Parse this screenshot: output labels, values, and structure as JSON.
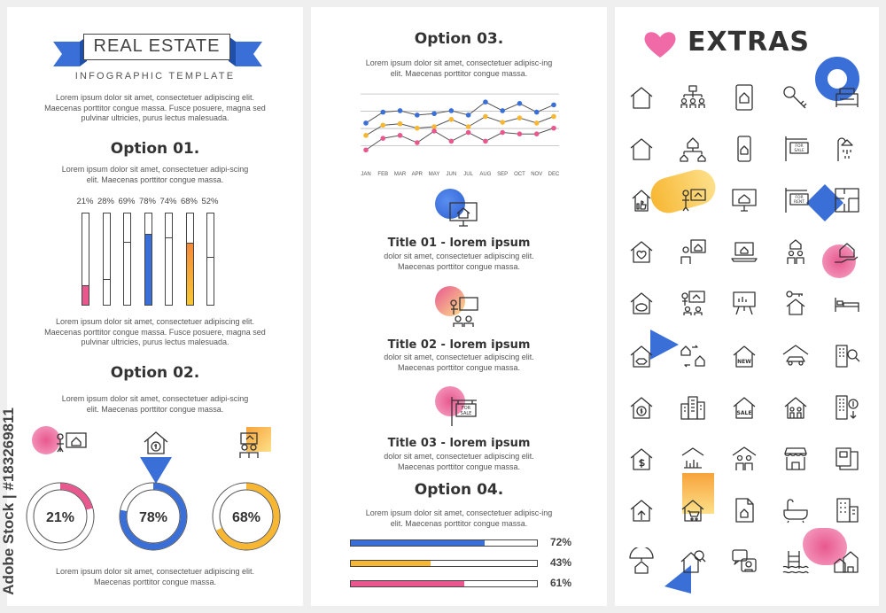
{
  "header": {
    "title": "REAL ESTATE",
    "subtitle": "INFOGRAPHIC TEMPLATE",
    "intro": "Lorem ipsum dolor sit amet, consectetuer adipiscing elit. Maecenas porttitor congue massa. Fusce posuere, magna sed pulvinar ultricies, purus lectus malesuada."
  },
  "option1": {
    "title": "Option 01.",
    "text": "Lorem ipsum dolor sit amet, consectetuer adipi-scing elit. Maecenas porttitor congue massa.",
    "bars": [
      {
        "label": "21%",
        "value": 21,
        "color": "#e8588f"
      },
      {
        "label": "28%",
        "value": 28,
        "color": "#ffffff"
      },
      {
        "label": "69%",
        "value": 69,
        "color": "#ffffff"
      },
      {
        "label": "78%",
        "value": 78,
        "color": "#3a6fd8"
      },
      {
        "label": "74%",
        "value": 74,
        "color": "#ffffff"
      },
      {
        "label": "68%",
        "value": 68,
        "color": "#f7b733"
      },
      {
        "label": "52%",
        "value": 52,
        "color": "#ffffff"
      }
    ],
    "footer": "Lorem ipsum dolor sit amet, consectetuer adipiscing elit. Maecenas porttitor congue massa. Fusce posuere, magna sed pulvinar ultricies, purus lectus malesuada."
  },
  "option2": {
    "title": "Option 02.",
    "text": "Lorem ipsum dolor sit amet, consectetuer adipi-scing elit. Maecenas porttitor congue massa.",
    "donuts": [
      {
        "label": "21%",
        "value": 21,
        "color": "#e8588f"
      },
      {
        "label": "78%",
        "value": 78,
        "color": "#3a6fd8"
      },
      {
        "label": "68%",
        "value": 68,
        "color": "#f7b733"
      }
    ],
    "footer": "Lorem ipsum dolor sit amet, consectetuer adipiscing elit. Maecenas porttitor congue massa."
  },
  "option3": {
    "title": "Option 03.",
    "text": "Lorem ipsum dolor sit amet, consectetuer adipisc-ing elit. Maecenas porttitor congue massa."
  },
  "chart_data": {
    "type": "line",
    "categories": [
      "JAN",
      "FEB",
      "MAR",
      "APR",
      "MAY",
      "JUN",
      "JUL",
      "AUG",
      "SEP",
      "OCT",
      "NOV",
      "DEC"
    ],
    "series": [
      {
        "color": "#3a6fd8",
        "values": [
          55,
          70,
          72,
          66,
          68,
          72,
          66,
          84,
          72,
          82,
          70,
          80
        ]
      },
      {
        "color": "#f7b733",
        "values": [
          38,
          52,
          54,
          48,
          50,
          60,
          50,
          64,
          56,
          62,
          55,
          64
        ]
      },
      {
        "color": "#e8588f",
        "values": [
          18,
          34,
          38,
          28,
          44,
          30,
          42,
          30,
          42,
          40,
          40,
          48
        ]
      }
    ],
    "ylim": [
      0,
      100
    ],
    "grid": true
  },
  "titles": [
    {
      "title": "Title 01 - lorem ipsum",
      "text": "dolor sit amet, consectetuer adipiscing elit. Maecenas porttitor congue massa."
    },
    {
      "title": "Title 02 - lorem ipsum",
      "text": "dolor sit amet, consectetuer adipiscing elit. Maecenas porttitor congue massa."
    },
    {
      "title": "Title 03 - lorem ipsum",
      "text": "dolor sit amet, consectetuer adipiscing elit. Maecenas porttitor congue massa."
    }
  ],
  "option4": {
    "title": "Option 04.",
    "text": "Lorem ipsum dolor sit amet, consectetuer adipisc-ing elit. Maecenas porttitor congue massa.",
    "bars": [
      {
        "label": "72%",
        "value": 72,
        "color": "#3a6fd8"
      },
      {
        "label": "43%",
        "value": 43,
        "color": "#f7b733"
      },
      {
        "label": "61%",
        "value": 61,
        "color": "#e8588f"
      }
    ]
  },
  "extras": {
    "title": "EXTRAS",
    "icons": [
      "house-icon",
      "org-chart-icon",
      "house-tablet-icon",
      "key-icon",
      "sofa-icon",
      "house-icon",
      "house-hierarchy-icon",
      "smartphone-house-icon",
      "for-sale-sign-icon",
      "shower-icon",
      "thumbs-up-house-icon",
      "presenter-icon",
      "monitor-house-icon",
      "for-rent-sign-icon",
      "floor-plan-icon",
      "heart-house-icon",
      "agent-house-icon",
      "laptop-house-icon",
      "couple-house-icon",
      "hand-house-icon",
      "piggy-bank-house-icon",
      "presentation-audience-icon",
      "presentation-board-icon",
      "key-house-icon",
      "bed-icon",
      "handshake-house-icon",
      "exchange-houses-icon",
      "new-house-icon",
      "garage-car-icon",
      "building-search-icon",
      "dollar-coin-house-icon",
      "city-buildings-icon",
      "sale-house-icon",
      "family-house-icon",
      "building-dollar-icon",
      "dollar-house-icon",
      "chart-house-icon",
      "family-roof-icon",
      "shop-icon",
      "blueprint-icon",
      "upload-house-icon",
      "cart-house-icon",
      "document-house-icon",
      "bathtub-icon",
      "apartments-icon",
      "umbrella-house-icon",
      "search-house-icon",
      "chat-house-icon",
      "pool-icon",
      "houses-row-icon"
    ]
  },
  "stock_id": "Adobe Stock | #183269811"
}
